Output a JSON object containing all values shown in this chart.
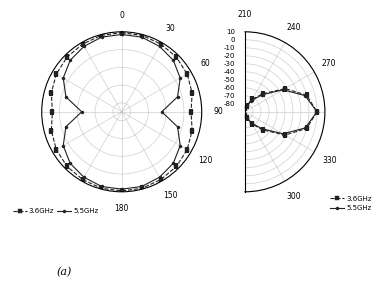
{
  "background_color": "#ffffff",
  "grid_color": "#bbbbbb",
  "label_fontsize": 5.5,
  "title_fontsize": 8,
  "legend_fontsize": 5.0,
  "plot_a": {
    "r_min": -90,
    "r_max": 0,
    "theta_ticks_deg": [
      0,
      30,
      60,
      90,
      120,
      150,
      180
    ],
    "theta_labels": [
      "0",
      "30",
      "60",
      "90",
      "120",
      "150",
      "180"
    ],
    "r_ticks": [
      -80,
      -60,
      -40,
      -20
    ],
    "series": [
      {
        "label": "3.6GHz",
        "color": "#222222",
        "linestyle": "--",
        "marker": "s",
        "angles_deg": [
          0,
          15,
          30,
          45,
          60,
          75,
          90,
          105,
          120,
          135,
          150,
          165,
          180,
          195,
          210,
          225,
          240,
          255,
          270,
          285,
          300,
          315,
          330,
          345
        ],
        "values_db": [
          -1,
          -1,
          -2,
          -3,
          -5,
          -8,
          -12,
          -8,
          -5,
          -3,
          -2,
          -1,
          -1,
          -1,
          -2,
          -3,
          -5,
          -8,
          -12,
          -8,
          -5,
          -3,
          -2,
          -1
        ]
      },
      {
        "label": "5.5GHz",
        "color": "#222222",
        "linestyle": "-",
        "marker": "o",
        "angles_deg": [
          0,
          15,
          30,
          45,
          60,
          75,
          90,
          105,
          120,
          135,
          150,
          165,
          180,
          195,
          210,
          225,
          240,
          255,
          270,
          285,
          300,
          315,
          330,
          345
        ],
        "values_db": [
          -3,
          -3,
          -5,
          -8,
          -14,
          -25,
          -45,
          -25,
          -14,
          -8,
          -5,
          -3,
          -3,
          -3,
          -5,
          -8,
          -14,
          -25,
          -45,
          -25,
          -14,
          -8,
          -5,
          -3
        ]
      }
    ]
  },
  "plot_b": {
    "r_min": -90,
    "r_max": 10,
    "r_ticks": [
      -80,
      -70,
      -60,
      -50,
      -40,
      -30,
      -20,
      -10,
      0,
      10
    ],
    "r_labels": [
      "-80",
      "-70",
      "-60",
      "-50",
      "-40",
      "-30",
      "-20",
      "-10",
      "0",
      "10"
    ],
    "series": [
      {
        "label": "3.6GHz",
        "color": "#222222",
        "linestyle": "--",
        "marker": "s",
        "angles_deg": [
          -90,
          -75,
          -60,
          -45,
          -30,
          -15,
          0,
          15,
          30,
          45,
          60,
          75,
          90
        ],
        "values_db": [
          -85,
          -82,
          -72,
          -58,
          -32,
          -10,
          0,
          -10,
          -32,
          -58,
          -72,
          -82,
          -85
        ]
      },
      {
        "label": "5.5GHz",
        "color": "#222222",
        "linestyle": "-",
        "marker": "o",
        "angles_deg": [
          -90,
          -75,
          -60,
          -45,
          -30,
          -15,
          0,
          15,
          30,
          45,
          60,
          75,
          90
        ],
        "values_db": [
          -85,
          -83,
          -74,
          -60,
          -35,
          -12,
          0,
          -12,
          -35,
          -60,
          -74,
          -83,
          -85
        ]
      }
    ]
  }
}
